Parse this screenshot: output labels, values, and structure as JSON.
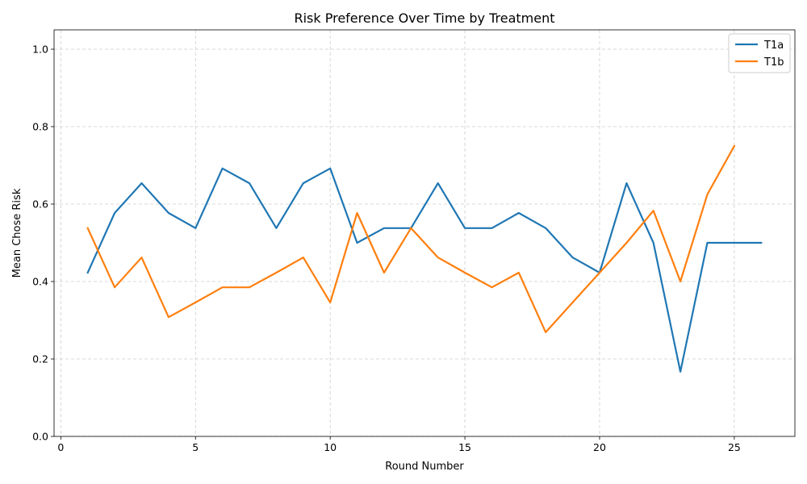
{
  "chart_data": {
    "type": "line",
    "title": "Risk Preference Over Time by Treatment",
    "xlabel": "Round Number",
    "ylabel": "Mean Chose Risk",
    "xlim": [
      -0.25,
      27.25
    ],
    "ylim": [
      0.0,
      1.05
    ],
    "xticks": [
      0,
      5,
      10,
      15,
      20,
      25
    ],
    "yticks": [
      0.0,
      0.2,
      0.4,
      0.6,
      0.8,
      1.0
    ],
    "xtick_labels": [
      "0",
      "5",
      "10",
      "15",
      "20",
      "25"
    ],
    "ytick_labels": [
      "0.0",
      "0.2",
      "0.4",
      "0.6",
      "0.8",
      "1.0"
    ],
    "grid": true,
    "legend_position": "top-right",
    "series": [
      {
        "name": "T1a",
        "color": "#1f77b4",
        "x": [
          1,
          2,
          3,
          4,
          5,
          6,
          7,
          8,
          9,
          10,
          11,
          12,
          13,
          14,
          15,
          16,
          17,
          18,
          19,
          20,
          21,
          22,
          23,
          24,
          25,
          26
        ],
        "y": [
          0.423,
          0.577,
          0.654,
          0.577,
          0.538,
          0.692,
          0.654,
          0.538,
          0.654,
          0.692,
          0.5,
          0.538,
          0.538,
          0.654,
          0.538,
          0.538,
          0.577,
          0.538,
          0.462,
          0.423,
          0.654,
          0.5,
          0.167,
          0.5,
          0.5,
          0.5
        ]
      },
      {
        "name": "T1b",
        "color": "#ff7f0e",
        "x": [
          1,
          2,
          3,
          4,
          5,
          6,
          7,
          8,
          9,
          10,
          11,
          12,
          13,
          14,
          15,
          16,
          17,
          18,
          19,
          20,
          21,
          22,
          23,
          24,
          25
        ],
        "y": [
          0.538,
          0.385,
          0.462,
          0.308,
          0.346,
          0.385,
          0.385,
          0.423,
          0.462,
          0.346,
          0.577,
          0.423,
          0.538,
          0.462,
          0.423,
          0.385,
          0.423,
          0.269,
          0.346,
          0.423,
          0.5,
          0.583,
          0.4,
          0.625,
          0.75
        ]
      }
    ]
  }
}
